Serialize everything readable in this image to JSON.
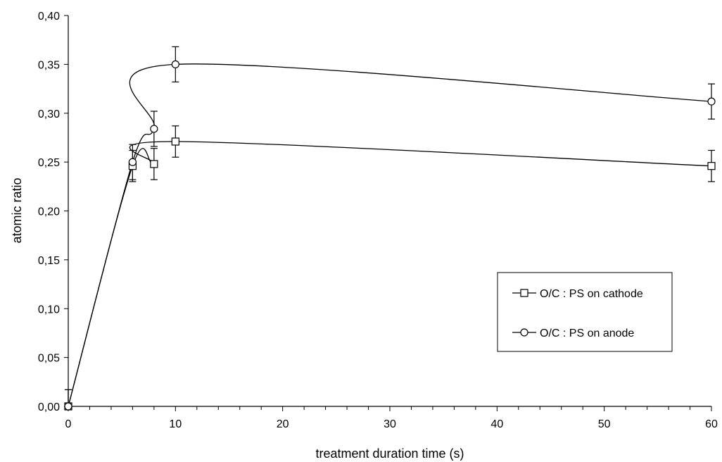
{
  "chart_data": {
    "type": "line",
    "xlabel": "treatment duration time (s)",
    "ylabel": "atomic ratio",
    "xlim": [
      0,
      60
    ],
    "ylim": [
      0,
      0.4
    ],
    "x_ticks": [
      0,
      10,
      20,
      30,
      40,
      50,
      60
    ],
    "x_tick_labels": [
      "0",
      "10",
      "20",
      "30",
      "40",
      "50",
      "60"
    ],
    "y_ticks": [
      0,
      0.05,
      0.1,
      0.15,
      0.2,
      0.25,
      0.3,
      0.35,
      0.4
    ],
    "y_tick_labels": [
      "0,00",
      "0,05",
      "0,10",
      "0,15",
      "0,20",
      "0,25",
      "0,30",
      "0,35",
      "0,40"
    ],
    "grid": false,
    "legend_position": "right",
    "x": [
      0,
      6,
      8,
      10,
      60
    ],
    "series": [
      {
        "name": "O/C : PS on cathode",
        "marker": "square",
        "values": [
          0.0,
          0.246,
          0.248,
          0.271,
          0.246
        ],
        "error": [
          0.017,
          0.016,
          0.016,
          0.016,
          0.016
        ]
      },
      {
        "name": "O/C : PS on anode",
        "marker": "circle",
        "values": [
          0.0,
          0.25,
          0.284,
          0.35,
          0.312
        ],
        "error": [
          0.017,
          0.018,
          0.018,
          0.018,
          0.018
        ]
      }
    ],
    "colors": {
      "line": "#000000",
      "marker_fill": "#ffffff",
      "background": "#ffffff"
    }
  }
}
